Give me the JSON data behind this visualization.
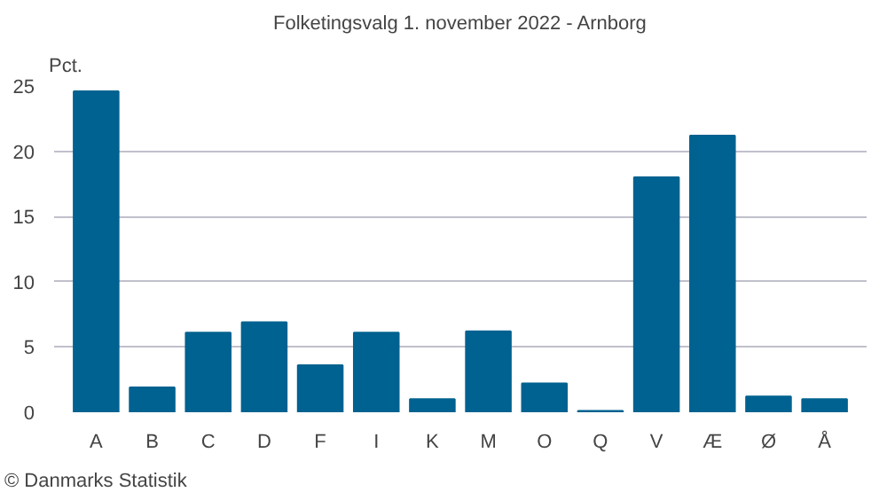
{
  "chart_data": {
    "type": "bar",
    "title": "Folketingsvalg 1. november 2022 - Arnborg",
    "ylabel": "Pct.",
    "categories": [
      "A",
      "B",
      "C",
      "D",
      "F",
      "I",
      "K",
      "M",
      "O",
      "Q",
      "V",
      "Æ",
      "Ø",
      "Å"
    ],
    "values": [
      24.6,
      1.9,
      6.1,
      6.9,
      3.6,
      6.1,
      1.0,
      6.2,
      2.2,
      0.1,
      18.0,
      21.2,
      1.2,
      1.0
    ],
    "color": "#006290",
    "ylim": [
      0,
      25
    ],
    "yticks": [
      0,
      5,
      10,
      15,
      20,
      25
    ],
    "grid": "y",
    "annotations": [
      "© Danmarks Statistik"
    ]
  }
}
